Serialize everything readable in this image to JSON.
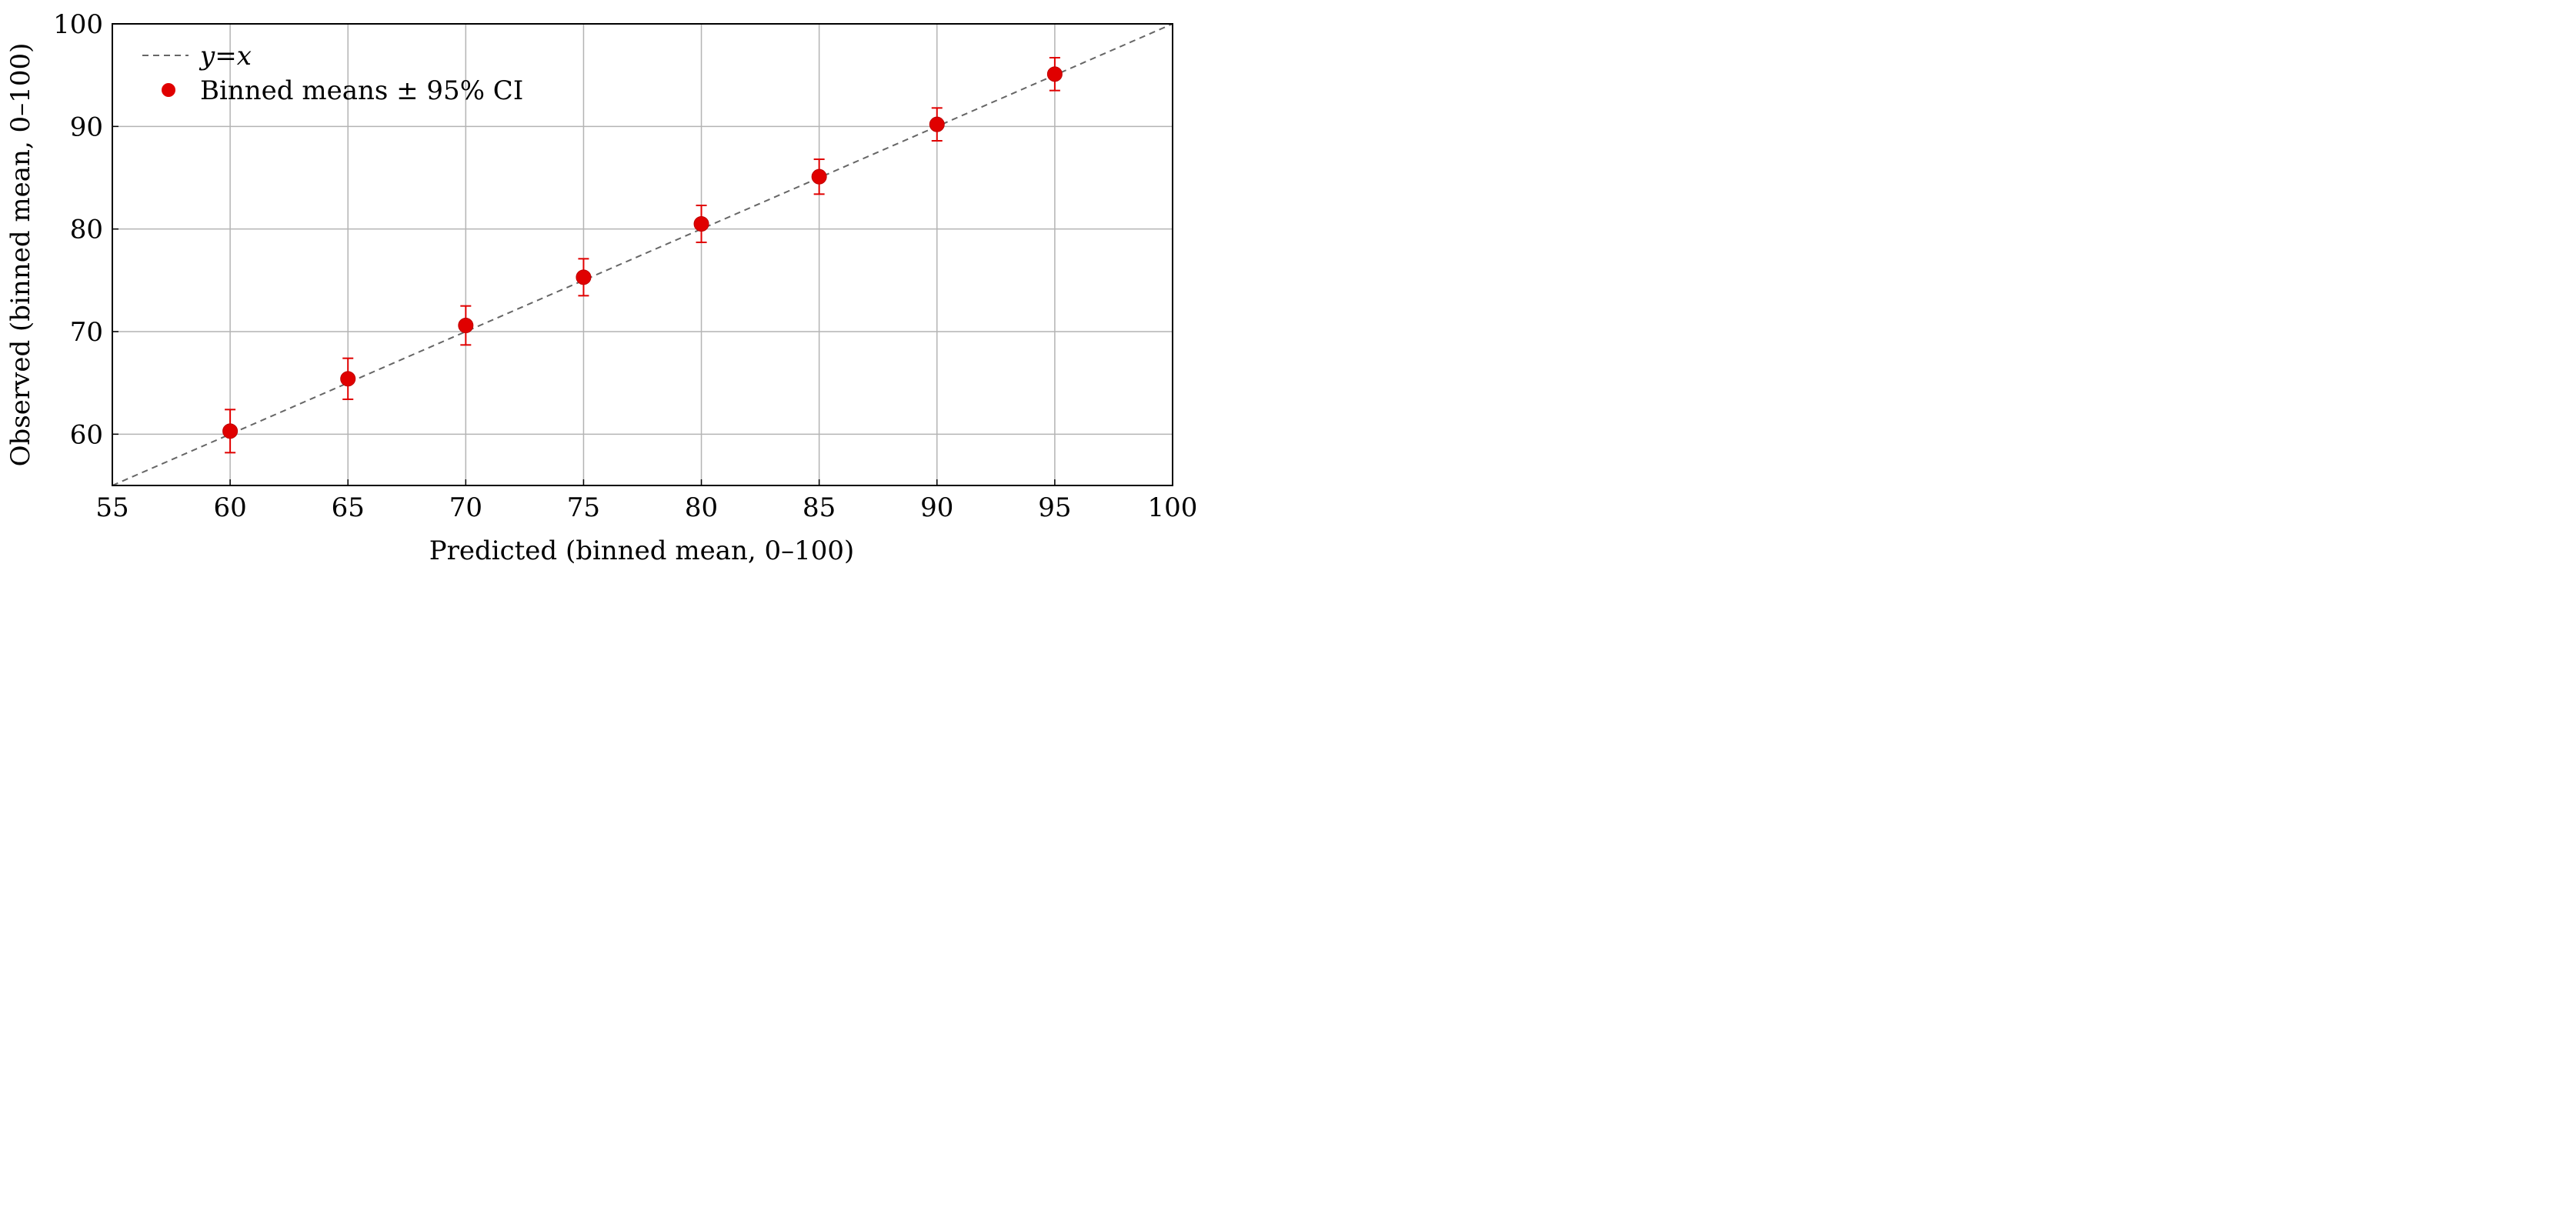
{
  "chart_data": {
    "type": "scatter",
    "title": "",
    "xlabel": "Predicted (binned mean, 0–100)",
    "ylabel": "Observed (binned mean, 0–100)",
    "xlim": [
      55,
      100
    ],
    "ylim": [
      55,
      100
    ],
    "xticks": [
      "55",
      "60",
      "65",
      "70",
      "75",
      "80",
      "85",
      "90",
      "95",
      "100"
    ],
    "yticks": [
      "60",
      "70",
      "80",
      "90",
      "100"
    ],
    "grid": true,
    "legend_position": "top-left",
    "reference_line": {
      "label": "y=x",
      "label_y": "y",
      "label_eq": "=",
      "label_x": "x",
      "style": "dashed",
      "color": "#666666"
    },
    "series": [
      {
        "name": "Binned means ± 95% CI",
        "color": "#e00000",
        "points": [
          {
            "x": 60,
            "y": 60.3,
            "lo": 58.2,
            "hi": 62.4
          },
          {
            "x": 65,
            "y": 65.4,
            "lo": 63.4,
            "hi": 67.4
          },
          {
            "x": 70,
            "y": 70.6,
            "lo": 68.7,
            "hi": 72.5
          },
          {
            "x": 75,
            "y": 75.3,
            "lo": 73.5,
            "hi": 77.1
          },
          {
            "x": 80,
            "y": 80.5,
            "lo": 78.7,
            "hi": 82.3
          },
          {
            "x": 85,
            "y": 85.1,
            "lo": 83.4,
            "hi": 86.8
          },
          {
            "x": 90,
            "y": 90.2,
            "lo": 88.6,
            "hi": 91.8
          },
          {
            "x": 95,
            "y": 95.1,
            "lo": 93.5,
            "hi": 96.7
          }
        ]
      }
    ]
  }
}
